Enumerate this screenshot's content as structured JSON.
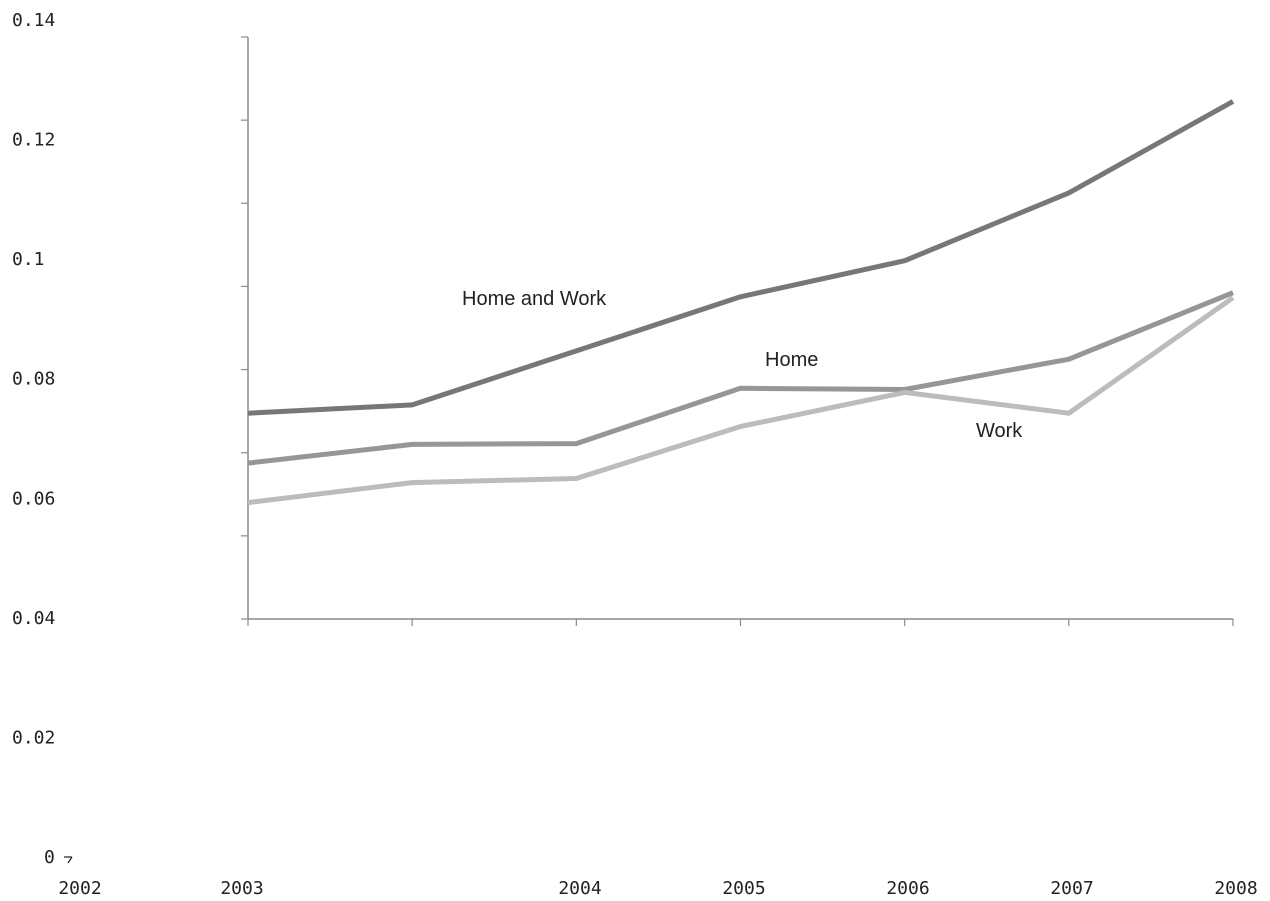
{
  "chart_data": {
    "type": "line",
    "title": "",
    "xlabel": "",
    "ylabel": "",
    "x": [
      2002,
      2003,
      2004,
      2005,
      2006,
      2007,
      2008
    ],
    "ylim": [
      0,
      0.14
    ],
    "yticks": [
      0,
      0.02,
      0.04,
      0.06,
      0.08,
      0.1,
      0.12,
      0.14
    ],
    "ytick_labels": [
      "0",
      "0.02",
      "0.04",
      "0.06",
      "0.08",
      "0.1",
      "0.12",
      "0.14"
    ],
    "xtick_labels": [
      "2002",
      "2003",
      "2004",
      "2005",
      "2006",
      "2007",
      "2008"
    ],
    "grid": false,
    "legend": "inline labels",
    "series": [
      {
        "name": "Home and Work",
        "color": "#777777",
        "values": [
          0.0495,
          0.0515,
          0.0645,
          0.0775,
          0.0862,
          0.1025,
          0.1245
        ]
      },
      {
        "name": "Home",
        "color": "#969696",
        "values": [
          0.0375,
          0.042,
          0.0422,
          0.0555,
          0.0552,
          0.0625,
          0.0785
        ]
      },
      {
        "name": "Work",
        "color": "#bcbcbc",
        "values": [
          0.028,
          0.0328,
          0.0338,
          0.0463,
          0.0545,
          0.0495,
          0.0773
        ]
      }
    ]
  }
}
